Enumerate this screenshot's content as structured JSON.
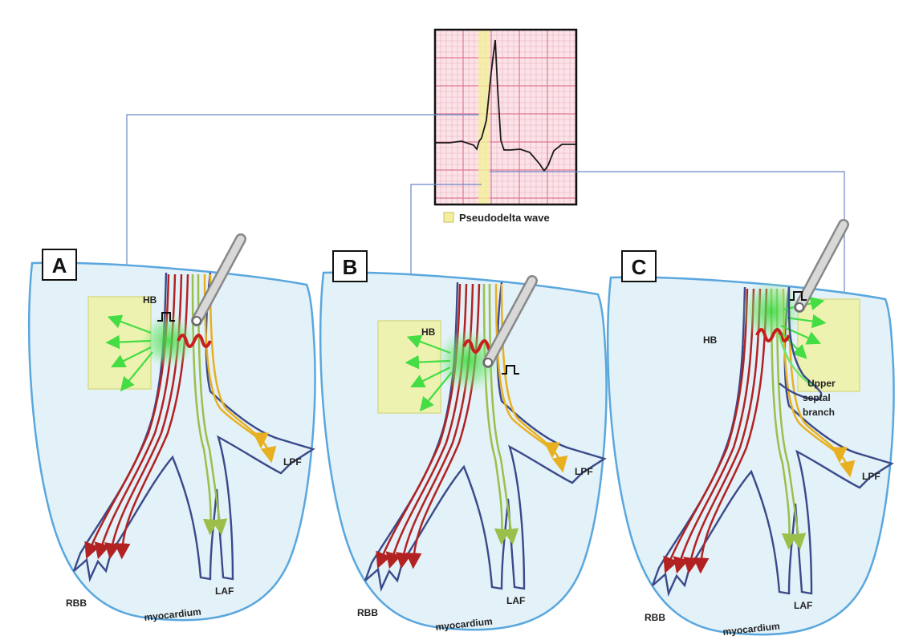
{
  "ecg": {
    "legend_label": "Pseudodelta wave",
    "highlight_color": "#f4ef9c",
    "grid_color": "#e8a4b4",
    "background": "#fbe3e8"
  },
  "panels": [
    {
      "letter": "A",
      "hb": "HB",
      "rbb": "RBB",
      "laf": "LAF",
      "lpf": "LPF",
      "myocardium": "myocardium"
    },
    {
      "letter": "B",
      "hb": "HB",
      "rbb": "RBB",
      "laf": "LAF",
      "lpf": "LPF",
      "myocardium": "myocardium"
    },
    {
      "letter": "C",
      "hb": "HB",
      "rbb": "RBB",
      "laf": "LAF",
      "lpf": "LPF",
      "myocardium": "myocardium",
      "upper_septal_line1": "Upper",
      "upper_septal_line2": "septal",
      "upper_septal_line3": "branch"
    }
  ],
  "colors": {
    "myocardium_fill": "#e3f1f8",
    "myocardium_border": "#5aa7de",
    "conduction_outline": "#3a4a8a",
    "rbb_fibers": "#b22222",
    "mid_fibers": "#9bbf4a",
    "lpf_fibers": "#e8b020",
    "capture_zone": "#5fe05f",
    "hb_box": "#eef2b0",
    "connector_line": "#5b7fc4"
  }
}
